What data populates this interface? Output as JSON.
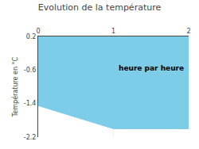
{
  "chart_data": {
    "type": "area",
    "title": "Evolution de la température",
    "y_label": "Température en °C",
    "x": [
      0,
      1,
      2
    ],
    "series": [
      {
        "values": [
          -1.45,
          -2.0,
          -2.0
        ],
        "color": "#7dcce8"
      }
    ],
    "fill_to": 0.2,
    "xlim": [
      0,
      2
    ],
    "xticks": [
      0,
      1,
      2
    ],
    "ylim": [
      -2.2,
      0.2
    ],
    "yticks": [
      0.2,
      -0.6,
      -1.4,
      -2.2
    ],
    "grid": true,
    "annotations": [
      {
        "text": "heure par heure",
        "x": 1.5,
        "y": -0.55
      }
    ]
  }
}
